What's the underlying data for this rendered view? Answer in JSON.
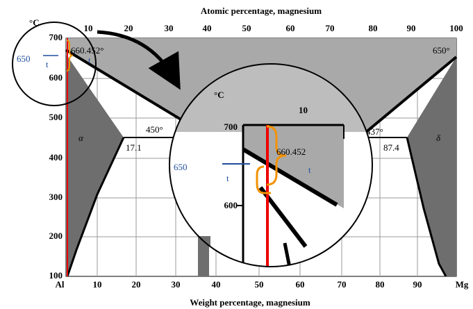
{
  "header": {
    "top_axis_title": "Atomic percentage, magnesium",
    "bottom_axis_title": "Weight percentage, magnesium",
    "y_unit": "°C"
  },
  "y_ticks": [
    700,
    600,
    500,
    400,
    300,
    200,
    100
  ],
  "top_ticks": [
    10,
    20,
    30,
    40,
    50,
    60,
    70,
    80,
    90,
    100
  ],
  "bottom_ticks": [
    10,
    20,
    30,
    40,
    50,
    60,
    70,
    80,
    90
  ],
  "bottom_ends": [
    "Al",
    "Mg"
  ],
  "annotations": {
    "al_melting": "660.452°",
    "mg_melting": "650°",
    "left_eutectic_temp": "450°",
    "left_eutectic_comp": "17.1",
    "right_eutectic_temp": "437°",
    "right_eutectic_comp": "87.4",
    "alpha": "α",
    "delta": "δ",
    "marker_value": "650",
    "marker_t_left": "t",
    "marker_t_right": "t"
  },
  "magnifier": {
    "unit": "°C",
    "top_tick": "10",
    "tick_700": "700",
    "tick_600": "600",
    "value": "660.452",
    "marker_value": "650",
    "t_left": "t",
    "t_right": "t"
  }
}
